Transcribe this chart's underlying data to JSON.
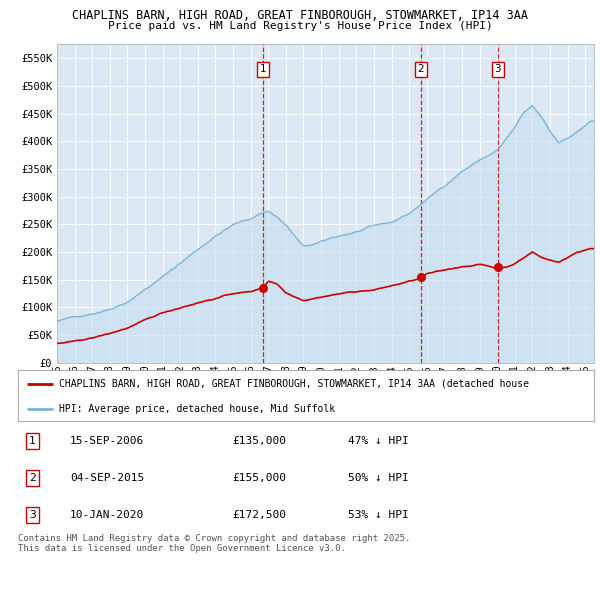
{
  "title": "CHAPLINS BARN, HIGH ROAD, GREAT FINBOROUGH, STOWMARKET, IP14 3AA",
  "subtitle": "Price paid vs. HM Land Registry's House Price Index (HPI)",
  "background_color": "#ffffff",
  "plot_bg_color": "#dce9f5",
  "ylim": [
    0,
    575000
  ],
  "yticks": [
    0,
    50000,
    100000,
    150000,
    200000,
    250000,
    300000,
    350000,
    400000,
    450000,
    500000,
    550000
  ],
  "ytick_labels": [
    "£0",
    "£50K",
    "£100K",
    "£150K",
    "£200K",
    "£250K",
    "£300K",
    "£350K",
    "£400K",
    "£450K",
    "£500K",
    "£550K"
  ],
  "xlim_start": 1995.0,
  "xlim_end": 2025.5,
  "xticks": [
    1995,
    1996,
    1997,
    1998,
    1999,
    2000,
    2001,
    2002,
    2003,
    2004,
    2005,
    2006,
    2007,
    2008,
    2009,
    2010,
    2011,
    2012,
    2013,
    2014,
    2015,
    2016,
    2017,
    2018,
    2019,
    2020,
    2021,
    2022,
    2023,
    2024,
    2025
  ],
  "xtick_labels": [
    "95",
    "96",
    "97",
    "98",
    "99",
    "00",
    "01",
    "02",
    "03",
    "04",
    "05",
    "06",
    "07",
    "08",
    "09",
    "10",
    "11",
    "12",
    "13",
    "14",
    "15",
    "16",
    "17",
    "18",
    "19",
    "20",
    "21",
    "22",
    "23",
    "24",
    "25"
  ],
  "sale1_date": 2006.708,
  "sale1_price": 135000,
  "sale2_date": 2015.672,
  "sale2_price": 155000,
  "sale3_date": 2020.033,
  "sale3_price": 172500,
  "hpi_color": "#7ab5d9",
  "hpi_fill_color": "#c5ddef",
  "price_color": "#cc0000",
  "vline_color": "#cc0000",
  "legend1_text": "CHAPLINS BARN, HIGH ROAD, GREAT FINBOROUGH, STOWMARKET, IP14 3AA (detached house",
  "legend2_text": "HPI: Average price, detached house, Mid Suffolk",
  "table_rows": [
    [
      "1",
      "15-SEP-2006",
      "£135,000",
      "47% ↓ HPI"
    ],
    [
      "2",
      "04-SEP-2015",
      "£155,000",
      "50% ↓ HPI"
    ],
    [
      "3",
      "10-JAN-2020",
      "£172,500",
      "53% ↓ HPI"
    ]
  ],
  "footer_text": "Contains HM Land Registry data © Crown copyright and database right 2025.\nThis data is licensed under the Open Government Licence v3.0."
}
